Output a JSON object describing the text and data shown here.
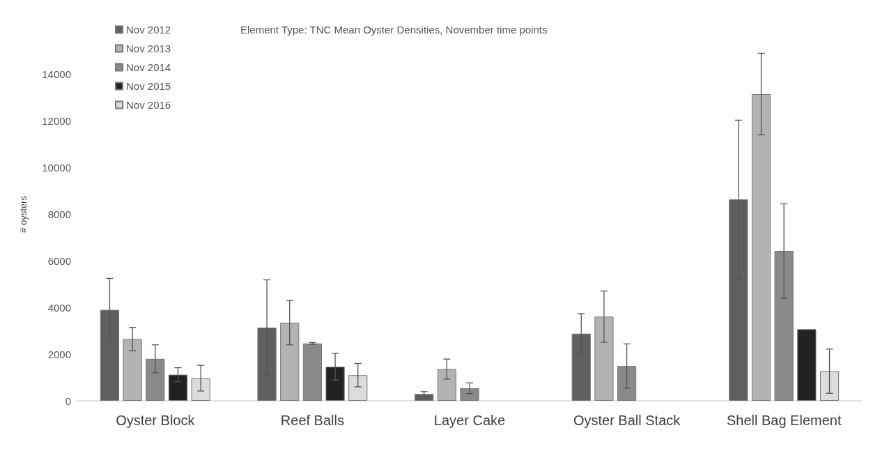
{
  "chart_data": {
    "type": "bar",
    "title": "Element Type: TNC Mean Oyster Densities, November time points",
    "ylabel": "# oysters",
    "categories": [
      "Oyster Block",
      "Reef Balls",
      "Layer Cake",
      "Oyster Ball Stack",
      "Shell Bag Element"
    ],
    "series": [
      {
        "name": "Nov 2012",
        "color": "#5f5f5f",
        "values": [
          3900,
          3140,
          290,
          2880,
          8640
        ],
        "errors": [
          1350,
          2050,
          105,
          860,
          3400
        ]
      },
      {
        "name": "Nov 2013",
        "color": "#b3b3b3",
        "values": [
          2650,
          3350,
          1360,
          3610,
          13160
        ],
        "errors": [
          500,
          950,
          430,
          1100,
          1750
        ]
      },
      {
        "name": "Nov 2014",
        "color": "#8a8a8a",
        "values": [
          1800,
          2460,
          540,
          1490,
          6430
        ],
        "errors": [
          600,
          40,
          230,
          950,
          2020
        ]
      },
      {
        "name": "Nov 2015",
        "color": "#222222",
        "values": [
          1120,
          1460,
          null,
          null,
          3070
        ],
        "errors": [
          300,
          570,
          null,
          null,
          null
        ]
      },
      {
        "name": "Nov 2016",
        "color": "#dcdcdc",
        "values": [
          970,
          1100,
          null,
          null,
          1270
        ],
        "errors": [
          550,
          500,
          null,
          null,
          950
        ]
      }
    ],
    "ylim": [
      0,
      16000
    ],
    "yticks": [
      0,
      2000,
      4000,
      6000,
      8000,
      10000,
      12000,
      14000
    ],
    "grid": false,
    "legend": "top left"
  }
}
